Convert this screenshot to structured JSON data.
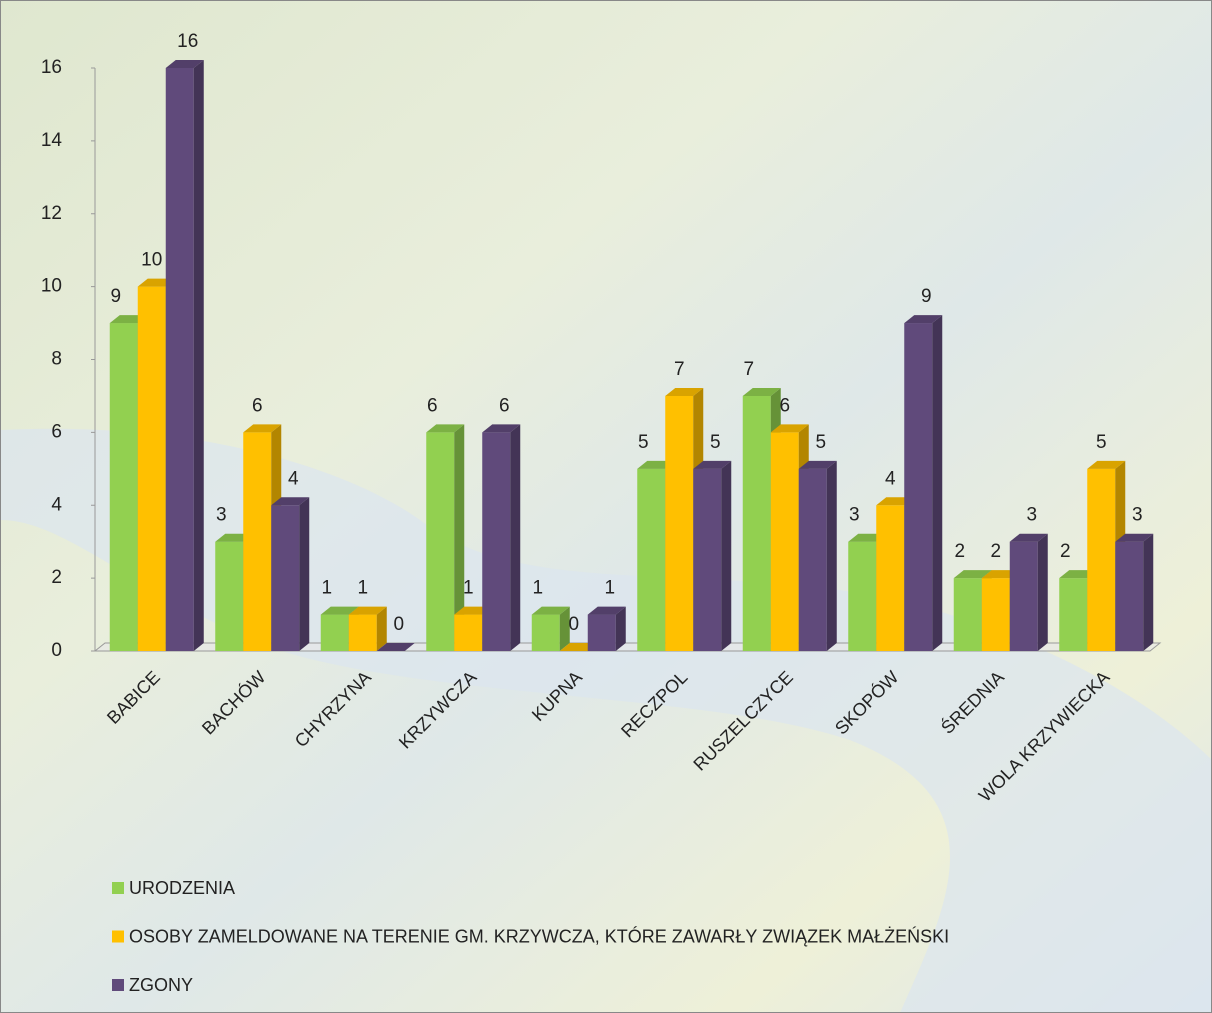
{
  "chart_data": {
    "type": "bar3d",
    "categories": [
      "BABICE",
      "BACHÓW",
      "CHYRZYNA",
      "KRZYWCZA",
      "KUPNA",
      "RECZPOL",
      "RUSZELCZYCE",
      "SKOPÓW",
      "ŚREDNIA",
      "WOLA KRZYWIECKA"
    ],
    "series": [
      {
        "name": "URODZENIA",
        "color": "#92d050",
        "values": [
          9,
          3,
          1,
          6,
          1,
          5,
          7,
          3,
          2,
          2
        ]
      },
      {
        "name": "OSOBY ZAMELDOWANE NA TERENIE GM. KRZYWCZA, KTÓRE ZAWARŁY ZWIĄZEK MAŁŻEŃSKI",
        "color": "#ffc000",
        "values": [
          10,
          6,
          1,
          1,
          0,
          7,
          6,
          4,
          2,
          5
        ]
      },
      {
        "name": "ZGONY",
        "color": "#604a7b",
        "values": [
          16,
          4,
          0,
          6,
          1,
          5,
          5,
          9,
          3,
          3
        ]
      }
    ],
    "ylim": [
      0,
      16
    ],
    "yticks": [
      0,
      2,
      4,
      6,
      8,
      10,
      12,
      14,
      16
    ],
    "legend": "bottom-left"
  }
}
